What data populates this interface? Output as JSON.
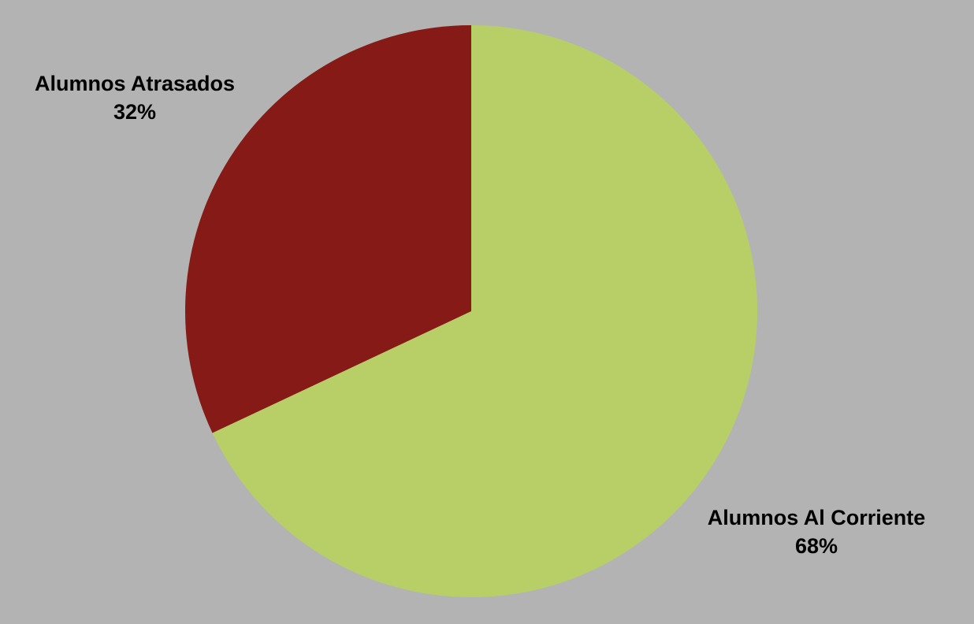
{
  "chart_data": {
    "type": "pie",
    "title": "",
    "background_color": "#b3b3b3",
    "slices": [
      {
        "name": "Alumnos Al Corriente",
        "value": 68,
        "value_label": "68%",
        "color": "#b8cf68"
      },
      {
        "name": "Alumnos Atrasados",
        "value": 32,
        "value_label": "32%",
        "color": "#861a16"
      }
    ],
    "start_angle": "12 o'clock",
    "direction": "clockwise",
    "legend": "none"
  }
}
